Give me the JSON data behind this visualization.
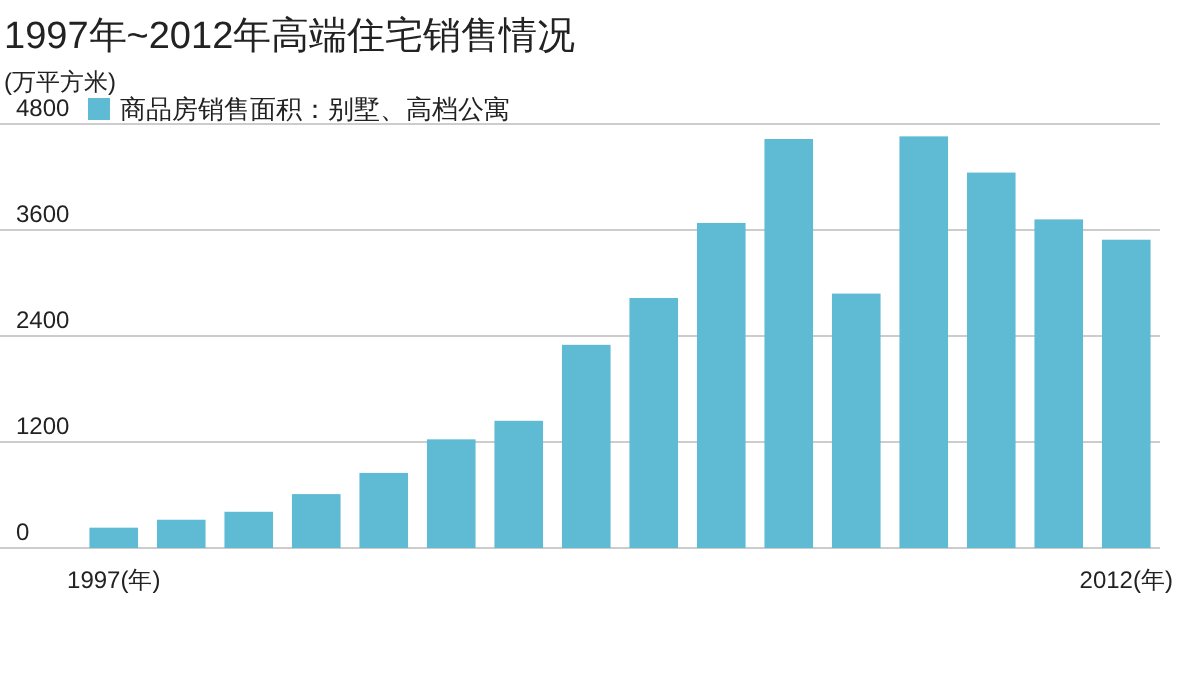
{
  "chart_data": {
    "type": "bar",
    "title": "1997年~2012年高端住宅销售情况",
    "ylabel": "(万平方米)",
    "categories": [
      "1997(年)",
      null,
      null,
      null,
      null,
      null,
      null,
      null,
      null,
      null,
      null,
      null,
      null,
      null,
      null,
      "2012(年)"
    ],
    "series": [
      {
        "name": "商品房销售面积：别墅、高档公寓",
        "color": "#5fbad4",
        "values": [
          230,
          320,
          410,
          610,
          850,
          1230,
          1440,
          2300,
          2830,
          3680,
          4630,
          2880,
          4660,
          4250,
          3720,
          3490
        ]
      }
    ],
    "ylim": [
      0,
      4800
    ],
    "yticks": [
      0,
      1200,
      2400,
      3600,
      4800
    ],
    "grid": "y",
    "legend": "top left"
  }
}
